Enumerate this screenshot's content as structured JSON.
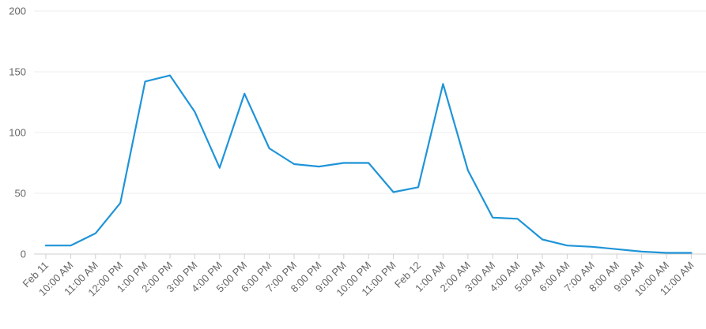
{
  "chart_data": {
    "type": "line",
    "title": "",
    "xlabel": "",
    "ylabel": "",
    "ylim": [
      0,
      200
    ],
    "yticks": [
      0,
      50,
      100,
      150,
      200
    ],
    "grid": true,
    "legend": "none",
    "categories": [
      "Feb 11",
      "10:00 AM",
      "11:00 AM",
      "12:00 PM",
      "1:00 PM",
      "2:00 PM",
      "3:00 PM",
      "4:00 PM",
      "5:00 PM",
      "6:00 PM",
      "7:00 PM",
      "8:00 PM",
      "9:00 PM",
      "10:00 PM",
      "11:00 PM",
      "Feb 12",
      "1:00 AM",
      "2:00 AM",
      "3:00 AM",
      "4:00 AM",
      "5:00 AM",
      "6:00 AM",
      "7:00 AM",
      "8:00 AM",
      "9:00 AM",
      "10:00 AM",
      "11:00 AM"
    ],
    "series": [
      {
        "color": "#1f94d8",
        "values": [
          7,
          7,
          17,
          42,
          142,
          147,
          117,
          71,
          132,
          87,
          74,
          72,
          75,
          75,
          51,
          55,
          140,
          69,
          30,
          29,
          12,
          7,
          6,
          4,
          2,
          1,
          1
        ]
      }
    ]
  }
}
